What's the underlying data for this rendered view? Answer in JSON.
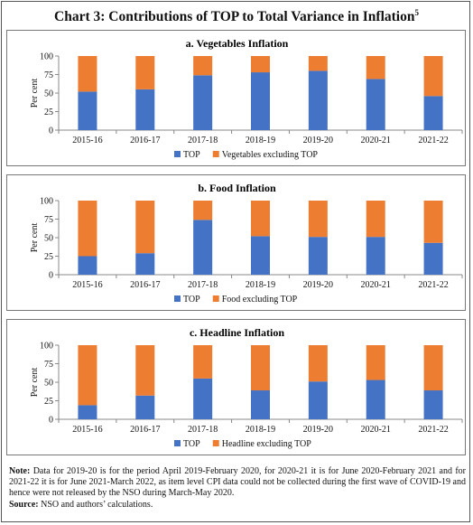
{
  "title": "Chart 3: Contributions of TOP to Total Variance in Inflation",
  "title_superscript": "5",
  "colors": {
    "top": "#4472C4",
    "other": "#ED7D31"
  },
  "chart_data": [
    {
      "type": "bar",
      "stacked": true,
      "title": "a. Vegetables Inflation",
      "ylabel": "Per cent",
      "ylim": [
        0,
        100
      ],
      "yticks": [
        0,
        25,
        50,
        75,
        100
      ],
      "categories": [
        "2015-16",
        "2016-17",
        "2017-18",
        "2018-19",
        "2019-20",
        "2020-21",
        "2021-22"
      ],
      "series": [
        {
          "name": "TOP",
          "values": [
            52,
            55,
            74,
            78,
            80,
            69,
            46
          ]
        },
        {
          "name": "Vegetables excluding TOP",
          "values": [
            48,
            45,
            26,
            22,
            20,
            31,
            54
          ]
        }
      ],
      "legend": "bottom"
    },
    {
      "type": "bar",
      "stacked": true,
      "title": "b. Food Inflation",
      "ylabel": "Per cent",
      "ylim": [
        0,
        100
      ],
      "yticks": [
        0,
        25,
        50,
        75,
        100
      ],
      "categories": [
        "2015-16",
        "2016-17",
        "2017-18",
        "2018-19",
        "2019-20",
        "2020-21",
        "2021-22"
      ],
      "series": [
        {
          "name": "TOP",
          "values": [
            25,
            29,
            74,
            52,
            51,
            51,
            43
          ]
        },
        {
          "name": "Food excluding TOP",
          "values": [
            75,
            71,
            26,
            48,
            49,
            49,
            57
          ]
        }
      ],
      "legend": "bottom"
    },
    {
      "type": "bar",
      "stacked": true,
      "title": "c. Headline Inflation",
      "ylabel": "Per cent",
      "ylim": [
        0,
        100
      ],
      "yticks": [
        0,
        25,
        50,
        75,
        100
      ],
      "categories": [
        "2015-16",
        "2016-17",
        "2017-18",
        "2018-19",
        "2019-20",
        "2020-21",
        "2021-22"
      ],
      "series": [
        {
          "name": "TOP",
          "values": [
            19,
            32,
            55,
            39,
            51,
            53,
            39
          ]
        },
        {
          "name": "Headline excluding TOP",
          "values": [
            81,
            68,
            45,
            61,
            49,
            47,
            61
          ]
        }
      ],
      "legend": "bottom"
    }
  ],
  "note_label": "Note:",
  "note_text": " Data for 2019-20 is for the period April 2019-February 2020, for 2020-21 it is for June 2020-February 2021 and for 2021-22 it is for June 2021-March 2022, as item level CPI data could not be collected during the first wave of COVID-19 and hence were not released by the NSO during March-May 2020.",
  "source_label": "Source:",
  "source_text": " NSO and authors’ calculations."
}
